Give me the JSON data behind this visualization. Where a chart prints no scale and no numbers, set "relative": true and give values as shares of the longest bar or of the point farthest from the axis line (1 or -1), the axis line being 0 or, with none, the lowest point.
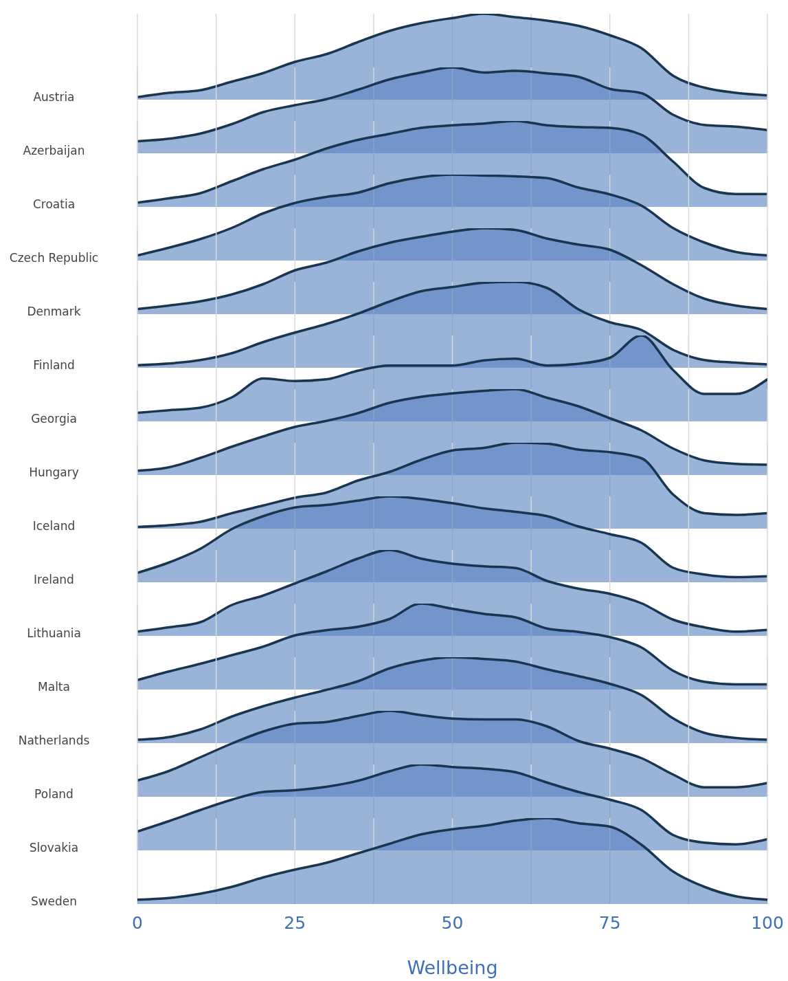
{
  "chart_data": [
    {
      "type": "area",
      "ylabel": "Austria",
      "relative": true,
      "color": "#5a85c2",
      "grid": "x",
      "tick_labels": false,
      "xlim": [
        0,
        100
      ],
      "xticks": [
        0,
        {
          "value": 12.5,
          "label": null
        },
        25,
        {
          "value": 37.5,
          "label": null
        },
        50,
        {
          "value": 62.5,
          "label": null
        },
        75,
        {
          "value": 87.5,
          "label": null
        },
        100
      ],
      "x": [
        0,
        5,
        10,
        15,
        20,
        25,
        30,
        35,
        40,
        45,
        50,
        55,
        60,
        65,
        70,
        75,
        80,
        85,
        90,
        95,
        100
      ],
      "values": [
        0.03,
        0.08,
        0.11,
        0.21,
        0.31,
        0.44,
        0.53,
        0.67,
        0.8,
        0.89,
        0.95,
        1,
        0.96,
        0.92,
        0.86,
        0.75,
        0.6,
        0.28,
        0.14,
        0.08,
        0.05
      ]
    },
    {
      "type": "area",
      "ylabel": "Azerbaijan",
      "relative": true,
      "color": "#5a85c2",
      "grid": "x",
      "tick_labels": false,
      "xlim": [
        0,
        100
      ],
      "xticks": [
        0,
        {
          "value": 12.5,
          "label": null
        },
        25,
        {
          "value": 37.5,
          "label": null
        },
        50,
        {
          "value": 62.5,
          "label": null
        },
        75,
        {
          "value": 87.5,
          "label": null
        },
        100
      ],
      "x": [
        0,
        5,
        10,
        15,
        20,
        25,
        30,
        35,
        40,
        45,
        50,
        55,
        60,
        65,
        70,
        75,
        80,
        85,
        90,
        95,
        100
      ],
      "values": [
        0.14,
        0.17,
        0.23,
        0.34,
        0.48,
        0.56,
        0.63,
        0.74,
        0.86,
        0.94,
        1,
        0.94,
        0.96,
        0.93,
        0.89,
        0.75,
        0.7,
        0.45,
        0.33,
        0.31,
        0.27
      ]
    },
    {
      "type": "area",
      "ylabel": "Croatia",
      "relative": true,
      "color": "#5a85c2",
      "grid": "x",
      "tick_labels": false,
      "xlim": [
        0,
        100
      ],
      "xticks": [
        0,
        {
          "value": 12.5,
          "label": null
        },
        25,
        {
          "value": 37.5,
          "label": null
        },
        50,
        {
          "value": 62.5,
          "label": null
        },
        75,
        {
          "value": 87.5,
          "label": null
        },
        100
      ],
      "x": [
        0,
        5,
        10,
        15,
        20,
        25,
        30,
        35,
        40,
        45,
        50,
        55,
        60,
        65,
        70,
        75,
        80,
        85,
        90,
        95,
        100
      ],
      "values": [
        0.05,
        0.1,
        0.16,
        0.3,
        0.44,
        0.55,
        0.68,
        0.78,
        0.85,
        0.92,
        0.95,
        0.97,
        1,
        0.95,
        0.93,
        0.92,
        0.84,
        0.53,
        0.22,
        0.15,
        0.15
      ]
    },
    {
      "type": "area",
      "ylabel": "Czech Republic",
      "relative": true,
      "color": "#5a85c2",
      "grid": "x",
      "tick_labels": false,
      "xlim": [
        0,
        100
      ],
      "xticks": [
        0,
        {
          "value": 12.5,
          "label": null
        },
        25,
        {
          "value": 37.5,
          "label": null
        },
        50,
        {
          "value": 62.5,
          "label": null
        },
        75,
        {
          "value": 87.5,
          "label": null
        },
        100
      ],
      "x": [
        0,
        5,
        10,
        15,
        20,
        25,
        30,
        35,
        40,
        45,
        50,
        55,
        60,
        65,
        70,
        75,
        80,
        85,
        90,
        95,
        100
      ],
      "values": [
        0.06,
        0.15,
        0.25,
        0.38,
        0.55,
        0.67,
        0.74,
        0.79,
        0.9,
        0.97,
        1,
        0.99,
        0.98,
        0.96,
        0.85,
        0.77,
        0.64,
        0.38,
        0.21,
        0.1,
        0.06
      ]
    },
    {
      "type": "area",
      "ylabel": "Denmark",
      "relative": true,
      "color": "#5a85c2",
      "grid": "x",
      "tick_labels": false,
      "xlim": [
        0,
        100
      ],
      "xticks": [
        0,
        {
          "value": 12.5,
          "label": null
        },
        25,
        {
          "value": 37.5,
          "label": null
        },
        50,
        {
          "value": 62.5,
          "label": null
        },
        75,
        {
          "value": 87.5,
          "label": null
        },
        100
      ],
      "x": [
        0,
        5,
        10,
        15,
        20,
        25,
        30,
        35,
        40,
        45,
        50,
        55,
        60,
        65,
        70,
        75,
        80,
        85,
        90,
        95,
        100
      ],
      "values": [
        0.06,
        0.1,
        0.15,
        0.23,
        0.35,
        0.51,
        0.6,
        0.73,
        0.83,
        0.9,
        0.96,
        1,
        0.98,
        0.88,
        0.81,
        0.75,
        0.57,
        0.35,
        0.18,
        0.1,
        0.06
      ]
    },
    {
      "type": "area",
      "ylabel": "Finland",
      "relative": true,
      "color": "#5a85c2",
      "grid": "x",
      "tick_labels": false,
      "xlim": [
        0,
        100
      ],
      "xticks": [
        0,
        {
          "value": 12.5,
          "label": null
        },
        25,
        {
          "value": 37.5,
          "label": null
        },
        50,
        {
          "value": 62.5,
          "label": null
        },
        75,
        {
          "value": 87.5,
          "label": null
        },
        100
      ],
      "x": [
        0,
        5,
        10,
        15,
        20,
        25,
        30,
        35,
        40,
        45,
        50,
        55,
        60,
        65,
        70,
        75,
        80,
        85,
        90,
        95,
        100
      ],
      "values": [
        0.03,
        0.05,
        0.09,
        0.17,
        0.3,
        0.41,
        0.51,
        0.63,
        0.77,
        0.89,
        0.94,
        0.99,
        1,
        0.93,
        0.68,
        0.53,
        0.44,
        0.21,
        0.09,
        0.06,
        0.04
      ]
    },
    {
      "type": "area",
      "ylabel": "Georgia",
      "relative": true,
      "color": "#5a85c2",
      "grid": "x",
      "tick_labels": false,
      "xlim": [
        0,
        100
      ],
      "xticks": [
        0,
        {
          "value": 12.5,
          "label": null
        },
        25,
        {
          "value": 37.5,
          "label": null
        },
        50,
        {
          "value": 62.5,
          "label": null
        },
        75,
        {
          "value": 87.5,
          "label": null
        },
        100
      ],
      "x": [
        0,
        5,
        10,
        15,
        20,
        25,
        30,
        35,
        40,
        45,
        50,
        55,
        60,
        65,
        70,
        75,
        80,
        85,
        90,
        95,
        100
      ],
      "values": [
        0.1,
        0.13,
        0.16,
        0.28,
        0.5,
        0.47,
        0.49,
        0.59,
        0.65,
        0.65,
        0.65,
        0.71,
        0.73,
        0.65,
        0.67,
        0.74,
        1,
        0.6,
        0.32,
        0.32,
        0.49
      ]
    },
    {
      "type": "area",
      "ylabel": "Hungary",
      "relative": true,
      "color": "#5a85c2",
      "grid": "x",
      "tick_labels": false,
      "xlim": [
        0,
        100
      ],
      "xticks": [
        0,
        {
          "value": 12.5,
          "label": null
        },
        25,
        {
          "value": 37.5,
          "label": null
        },
        50,
        {
          "value": 62.5,
          "label": null
        },
        75,
        {
          "value": 87.5,
          "label": null
        },
        100
      ],
      "x": [
        0,
        5,
        10,
        15,
        20,
        25,
        30,
        35,
        40,
        45,
        50,
        55,
        60,
        65,
        70,
        75,
        80,
        85,
        90,
        95,
        100
      ],
      "values": [
        0.05,
        0.09,
        0.2,
        0.33,
        0.45,
        0.56,
        0.63,
        0.72,
        0.84,
        0.91,
        0.95,
        0.98,
        1,
        0.9,
        0.8,
        0.66,
        0.52,
        0.31,
        0.17,
        0.13,
        0.12
      ]
    },
    {
      "type": "area",
      "ylabel": "Iceland",
      "relative": true,
      "color": "#5a85c2",
      "grid": "x",
      "tick_labels": false,
      "xlim": [
        0,
        100
      ],
      "xticks": [
        0,
        {
          "value": 12.5,
          "label": null
        },
        25,
        {
          "value": 37.5,
          "label": null
        },
        50,
        {
          "value": 62.5,
          "label": null
        },
        75,
        {
          "value": 87.5,
          "label": null
        },
        100
      ],
      "x": [
        0,
        5,
        10,
        15,
        20,
        25,
        30,
        35,
        40,
        45,
        50,
        55,
        60,
        65,
        70,
        75,
        80,
        85,
        90,
        95,
        100
      ],
      "values": [
        0.02,
        0.04,
        0.08,
        0.18,
        0.27,
        0.36,
        0.42,
        0.56,
        0.66,
        0.8,
        0.91,
        0.94,
        1,
        0.99,
        0.92,
        0.89,
        0.82,
        0.4,
        0.18,
        0.16,
        0.18
      ]
    },
    {
      "type": "area",
      "ylabel": "Ireland",
      "relative": true,
      "color": "#5a85c2",
      "grid": "x",
      "tick_labels": false,
      "xlim": [
        0,
        100
      ],
      "xticks": [
        0,
        {
          "value": 12.5,
          "label": null
        },
        25,
        {
          "value": 37.5,
          "label": null
        },
        50,
        {
          "value": 62.5,
          "label": null
        },
        75,
        {
          "value": 87.5,
          "label": null
        },
        100
      ],
      "x": [
        0,
        5,
        10,
        15,
        20,
        25,
        30,
        35,
        40,
        45,
        50,
        55,
        60,
        65,
        70,
        75,
        80,
        85,
        90,
        95,
        100
      ],
      "values": [
        0.11,
        0.23,
        0.39,
        0.62,
        0.77,
        0.87,
        0.9,
        0.95,
        1,
        0.97,
        0.92,
        0.86,
        0.82,
        0.77,
        0.65,
        0.56,
        0.46,
        0.17,
        0.09,
        0.06,
        0.07
      ]
    },
    {
      "type": "area",
      "ylabel": "Lithuania",
      "relative": true,
      "color": "#5a85c2",
      "grid": "x",
      "tick_labels": false,
      "xlim": [
        0,
        100
      ],
      "xticks": [
        0,
        {
          "value": 12.5,
          "label": null
        },
        25,
        {
          "value": 37.5,
          "label": null
        },
        50,
        {
          "value": 62.5,
          "label": null
        },
        75,
        {
          "value": 87.5,
          "label": null
        },
        100
      ],
      "x": [
        0,
        5,
        10,
        15,
        20,
        25,
        30,
        35,
        40,
        45,
        50,
        55,
        60,
        65,
        70,
        75,
        80,
        85,
        90,
        95,
        100
      ],
      "values": [
        0.05,
        0.1,
        0.16,
        0.36,
        0.47,
        0.61,
        0.75,
        0.9,
        1,
        0.9,
        0.84,
        0.81,
        0.79,
        0.64,
        0.55,
        0.49,
        0.38,
        0.19,
        0.1,
        0.05,
        0.07
      ]
    },
    {
      "type": "area",
      "ylabel": "Malta",
      "relative": true,
      "color": "#5a85c2",
      "grid": "x",
      "tick_labels": false,
      "xlim": [
        0,
        100
      ],
      "xticks": [
        0,
        {
          "value": 12.5,
          "label": null
        },
        25,
        {
          "value": 37.5,
          "label": null
        },
        50,
        {
          "value": 62.5,
          "label": null
        },
        75,
        {
          "value": 87.5,
          "label": null
        },
        100
      ],
      "x": [
        0,
        5,
        10,
        15,
        20,
        25,
        30,
        35,
        40,
        45,
        50,
        55,
        60,
        65,
        70,
        75,
        80,
        85,
        90,
        95,
        100
      ],
      "values": [
        0.11,
        0.21,
        0.3,
        0.4,
        0.5,
        0.63,
        0.69,
        0.73,
        0.82,
        1,
        0.94,
        0.88,
        0.84,
        0.71,
        0.67,
        0.61,
        0.49,
        0.22,
        0.09,
        0.06,
        0.06
      ]
    },
    {
      "type": "area",
      "ylabel": "Natherlands",
      "relative": true,
      "color": "#5a85c2",
      "grid": "x",
      "tick_labels": false,
      "xlim": [
        0,
        100
      ],
      "xticks": [
        0,
        {
          "value": 12.5,
          "label": null
        },
        25,
        {
          "value": 37.5,
          "label": null
        },
        50,
        {
          "value": 62.5,
          "label": null
        },
        75,
        {
          "value": 87.5,
          "label": null
        },
        100
      ],
      "x": [
        0,
        5,
        10,
        15,
        20,
        25,
        30,
        35,
        40,
        45,
        50,
        55,
        60,
        65,
        70,
        75,
        80,
        85,
        90,
        95,
        100
      ],
      "values": [
        0.04,
        0.07,
        0.16,
        0.31,
        0.43,
        0.53,
        0.62,
        0.72,
        0.87,
        0.96,
        1,
        0.98,
        0.95,
        0.86,
        0.78,
        0.69,
        0.56,
        0.29,
        0.12,
        0.06,
        0.04
      ]
    },
    {
      "type": "area",
      "ylabel": "Poland",
      "relative": true,
      "color": "#5a85c2",
      "grid": "x",
      "tick_labels": false,
      "xlim": [
        0,
        100
      ],
      "xticks": [
        0,
        {
          "value": 12.5,
          "label": null
        },
        25,
        {
          "value": 37.5,
          "label": null
        },
        50,
        {
          "value": 62.5,
          "label": null
        },
        75,
        {
          "value": 87.5,
          "label": null
        },
        100
      ],
      "x": [
        0,
        5,
        10,
        15,
        20,
        25,
        30,
        35,
        40,
        45,
        50,
        55,
        60,
        65,
        70,
        75,
        80,
        85,
        90,
        95,
        100
      ],
      "values": [
        0.19,
        0.3,
        0.46,
        0.62,
        0.76,
        0.85,
        0.87,
        0.94,
        1,
        0.95,
        0.91,
        0.9,
        0.9,
        0.82,
        0.65,
        0.56,
        0.45,
        0.26,
        0.11,
        0.11,
        0.16
      ]
    },
    {
      "type": "area",
      "ylabel": "Slovakia",
      "relative": true,
      "color": "#5a85c2",
      "grid": "x",
      "tick_labels": false,
      "xlim": [
        0,
        100
      ],
      "xticks": [
        0,
        {
          "value": 12.5,
          "label": null
        },
        25,
        {
          "value": 37.5,
          "label": null
        },
        50,
        {
          "value": 62.5,
          "label": null
        },
        75,
        {
          "value": 87.5,
          "label": null
        },
        100
      ],
      "x": [
        0,
        5,
        10,
        15,
        20,
        25,
        30,
        35,
        40,
        45,
        50,
        55,
        60,
        65,
        70,
        75,
        80,
        85,
        90,
        95,
        100
      ],
      "values": [
        0.22,
        0.34,
        0.47,
        0.59,
        0.68,
        0.7,
        0.74,
        0.81,
        0.92,
        1,
        0.97,
        0.95,
        0.91,
        0.79,
        0.68,
        0.59,
        0.47,
        0.18,
        0.09,
        0.07,
        0.13
      ]
    },
    {
      "type": "area",
      "ylabel": "Sweden",
      "xlabel": "Wellbeing",
      "relative": true,
      "color": "#5a85c2",
      "grid": "x",
      "tick_labels": "x",
      "xlim": [
        0,
        100
      ],
      "xticks": [
        0,
        {
          "value": 12.5,
          "label": null
        },
        25,
        {
          "value": 37.5,
          "label": null
        },
        50,
        {
          "value": 62.5,
          "label": null
        },
        75,
        {
          "value": 87.5,
          "label": null
        },
        100
      ],
      "x": [
        0,
        5,
        10,
        15,
        20,
        25,
        30,
        35,
        40,
        45,
        50,
        55,
        60,
        65,
        70,
        75,
        80,
        85,
        90,
        95,
        100
      ],
      "values": [
        0.05,
        0.07,
        0.12,
        0.2,
        0.31,
        0.4,
        0.48,
        0.59,
        0.7,
        0.81,
        0.87,
        0.91,
        0.97,
        1,
        0.94,
        0.9,
        0.69,
        0.38,
        0.2,
        0.09,
        0.05
      ]
    }
  ]
}
